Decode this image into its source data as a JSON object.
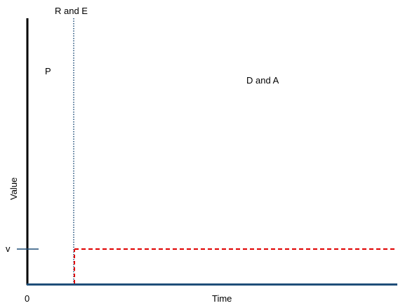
{
  "diagram": {
    "top_label": "R and E",
    "left_region_label": "P",
    "right_region_label": "D and A",
    "x_axis_label": "Time",
    "y_axis_label": "Value",
    "origin_label": "0",
    "value_marker_label": "v"
  },
  "style": {
    "axis_color": "#000000",
    "baseline_color": "#1F4E79",
    "dotted_line_color": "#1F4E79",
    "dashed_line_color": "#E00000",
    "value_tick_color": "#1F4E79"
  }
}
